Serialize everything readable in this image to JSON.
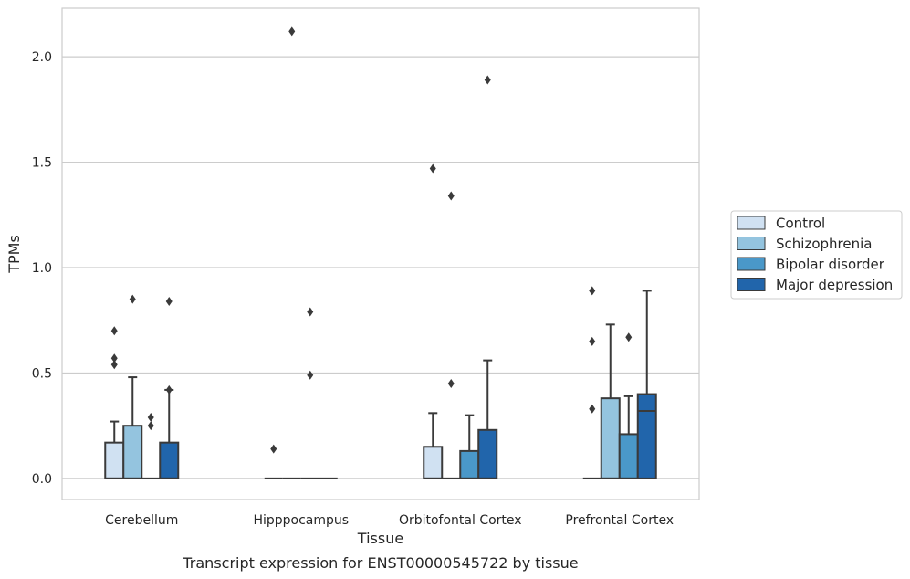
{
  "chart_data": {
    "type": "box",
    "title": "",
    "xlabel": "Tissue",
    "ylabel": "TPMs",
    "caption": "Transcript expression for ENST00000545722 by tissue",
    "categories": [
      "Cerebellum",
      "Hipppocampus",
      "Orbitofontal Cortex",
      "Prefrontal Cortex"
    ],
    "ylim": [
      -0.1,
      2.23
    ],
    "yticks": [
      0.0,
      0.5,
      1.0,
      1.5,
      2.0
    ],
    "ytick_labels": [
      "0.0",
      "0.5",
      "1.0",
      "1.5",
      "2.0"
    ],
    "grid": true,
    "legend_position": "right",
    "series": [
      {
        "name": "Control",
        "color": "#d0e1f2",
        "boxes": [
          {
            "q1": 0.0,
            "median": 0.0,
            "q3": 0.17,
            "whisker_low": 0.0,
            "whisker_high": 0.27,
            "outliers": [
              0.7,
              0.57,
              0.54
            ]
          },
          {
            "q1": 0.0,
            "median": 0.0,
            "q3": 0.0,
            "whisker_low": 0.0,
            "whisker_high": 0.0,
            "outliers": [
              0.14
            ]
          },
          {
            "q1": 0.0,
            "median": 0.0,
            "q3": 0.15,
            "whisker_low": 0.0,
            "whisker_high": 0.31,
            "outliers": [
              1.47
            ]
          },
          {
            "q1": 0.0,
            "median": 0.0,
            "q3": 0.0,
            "whisker_low": 0.0,
            "whisker_high": 0.0,
            "outliers": [
              0.89,
              0.65,
              0.33
            ]
          }
        ]
      },
      {
        "name": "Schizophrenia",
        "color": "#94c4df",
        "boxes": [
          {
            "q1": 0.0,
            "median": 0.0,
            "q3": 0.25,
            "whisker_low": 0.0,
            "whisker_high": 0.48,
            "outliers": [
              0.85
            ]
          },
          {
            "q1": 0.0,
            "median": 0.0,
            "q3": 0.0,
            "whisker_low": 0.0,
            "whisker_high": 0.0,
            "outliers": [
              2.12
            ]
          },
          {
            "q1": 0.0,
            "median": 0.0,
            "q3": 0.0,
            "whisker_low": 0.0,
            "whisker_high": 0.0,
            "outliers": [
              1.34,
              0.45
            ]
          },
          {
            "q1": 0.0,
            "median": 0.0,
            "q3": 0.38,
            "whisker_low": 0.0,
            "whisker_high": 0.73,
            "outliers": []
          }
        ]
      },
      {
        "name": "Bipolar disorder",
        "color": "#4a98c9",
        "boxes": [
          {
            "q1": 0.0,
            "median": 0.0,
            "q3": 0.0,
            "whisker_low": 0.0,
            "whisker_high": 0.0,
            "outliers": [
              0.29,
              0.25
            ]
          },
          {
            "q1": 0.0,
            "median": 0.0,
            "q3": 0.0,
            "whisker_low": 0.0,
            "whisker_high": 0.0,
            "outliers": [
              0.79,
              0.49
            ]
          },
          {
            "q1": 0.0,
            "median": 0.0,
            "q3": 0.13,
            "whisker_low": 0.0,
            "whisker_high": 0.3,
            "outliers": []
          },
          {
            "q1": 0.0,
            "median": 0.0,
            "q3": 0.21,
            "whisker_low": 0.0,
            "whisker_high": 0.39,
            "outliers": [
              0.67
            ]
          }
        ]
      },
      {
        "name": "Major depression",
        "color": "#2165ab",
        "boxes": [
          {
            "q1": 0.0,
            "median": 0.0,
            "q3": 0.17,
            "whisker_low": 0.0,
            "whisker_high": 0.42,
            "outliers": [
              0.84,
              0.42
            ]
          },
          {
            "q1": 0.0,
            "median": 0.0,
            "q3": 0.0,
            "whisker_low": 0.0,
            "whisker_high": 0.0,
            "outliers": []
          },
          {
            "q1": 0.0,
            "median": 0.0,
            "q3": 0.23,
            "whisker_low": 0.0,
            "whisker_high": 0.56,
            "outliers": [
              1.89
            ]
          },
          {
            "q1": 0.0,
            "median": 0.32,
            "q3": 0.4,
            "whisker_low": 0.0,
            "whisker_high": 0.89,
            "outliers": []
          }
        ]
      }
    ]
  }
}
